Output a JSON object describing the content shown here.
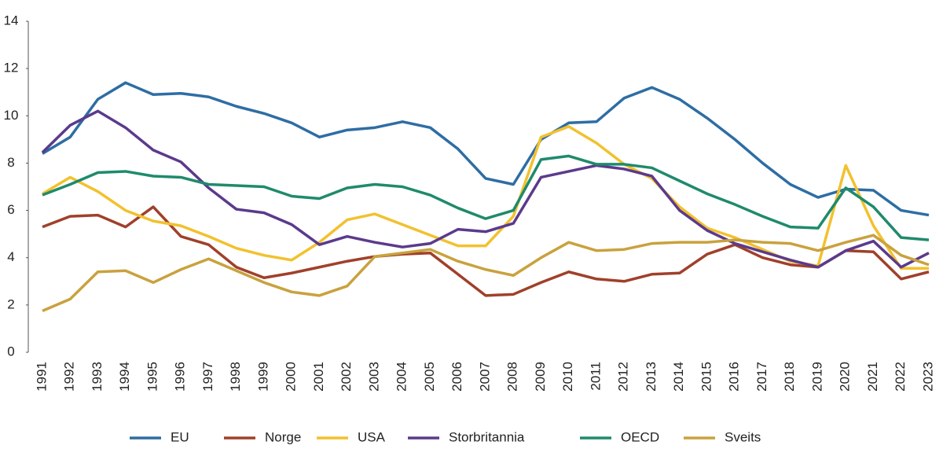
{
  "chart_data": {
    "type": "line",
    "categories": [
      "1991",
      "1992",
      "1993",
      "1994",
      "1995",
      "1996",
      "1997",
      "1998",
      "1999",
      "2000",
      "2001",
      "2002",
      "2003",
      "2004",
      "2005",
      "2006",
      "2007",
      "2008",
      "2009",
      "2010",
      "2011",
      "2012",
      "2013",
      "2014",
      "2015",
      "2016",
      "2017",
      "2018",
      "2019",
      "2020",
      "2021",
      "2022",
      "2023"
    ],
    "ylim": [
      0,
      14
    ],
    "yticks": [
      0,
      2,
      4,
      6,
      8,
      10,
      12,
      14
    ],
    "grid": false,
    "legend": "bottom",
    "series": [
      {
        "name": "EU",
        "color": "#2e6da4",
        "values": [
          8.4,
          9.1,
          10.7,
          11.4,
          10.9,
          10.95,
          10.8,
          10.4,
          10.1,
          9.7,
          9.1,
          9.4,
          9.5,
          9.75,
          9.5,
          8.6,
          7.35,
          7.1,
          9.0,
          9.7,
          9.75,
          10.75,
          11.2,
          10.7,
          9.9,
          9.0,
          8.0,
          7.1,
          6.55,
          6.9,
          6.85,
          6.0,
          5.8
        ]
      },
      {
        "name": "Norge",
        "color": "#a0402a",
        "values": [
          5.3,
          5.75,
          5.8,
          5.3,
          6.15,
          4.9,
          4.55,
          3.6,
          3.15,
          3.35,
          3.6,
          3.85,
          4.05,
          4.15,
          4.2,
          3.3,
          2.4,
          2.45,
          2.95,
          3.4,
          3.1,
          3.0,
          3.3,
          3.35,
          4.15,
          4.55,
          4.0,
          3.7,
          3.6,
          4.3,
          4.25,
          3.1,
          3.4
        ]
      },
      {
        "name": "USA",
        "color": "#f2c12e",
        "values": [
          6.7,
          7.4,
          6.8,
          6.0,
          5.55,
          5.35,
          4.9,
          4.4,
          4.1,
          3.9,
          4.65,
          5.6,
          5.85,
          5.4,
          4.95,
          4.5,
          4.5,
          5.75,
          9.1,
          9.55,
          8.85,
          7.95,
          7.35,
          6.15,
          5.25,
          4.85,
          4.35,
          3.85,
          3.65,
          7.9,
          5.35,
          3.55,
          3.55
        ]
      },
      {
        "name": "Storbritannia",
        "color": "#5b3a8c",
        "values": [
          8.45,
          9.6,
          10.2,
          9.5,
          8.55,
          8.05,
          6.95,
          6.05,
          5.9,
          5.4,
          4.55,
          4.9,
          4.65,
          4.45,
          4.6,
          5.2,
          5.1,
          5.45,
          7.4,
          7.65,
          7.9,
          7.75,
          7.45,
          6.0,
          5.15,
          4.6,
          4.25,
          3.9,
          3.6,
          4.3,
          4.7,
          3.6,
          4.2
        ]
      },
      {
        "name": "OECD",
        "color": "#1f8a6c",
        "values": [
          6.65,
          7.1,
          7.6,
          7.65,
          7.45,
          7.4,
          7.1,
          7.05,
          7.0,
          6.6,
          6.5,
          6.95,
          7.1,
          7.0,
          6.65,
          6.1,
          5.65,
          6.0,
          8.15,
          8.3,
          7.95,
          7.95,
          7.8,
          7.25,
          6.7,
          6.25,
          5.75,
          5.3,
          5.25,
          6.95,
          6.15,
          4.85,
          4.75
        ]
      },
      {
        "name": "Sveits",
        "color": "#c9a23e",
        "values": [
          1.75,
          2.25,
          3.4,
          3.45,
          2.95,
          3.5,
          3.95,
          3.45,
          2.95,
          2.55,
          2.4,
          2.8,
          4.05,
          4.2,
          4.35,
          3.85,
          3.5,
          3.25,
          4.0,
          4.65,
          4.3,
          4.35,
          4.6,
          4.65,
          4.65,
          4.75,
          4.65,
          4.6,
          4.3,
          4.65,
          4.95,
          4.1,
          3.7
        ]
      }
    ]
  }
}
